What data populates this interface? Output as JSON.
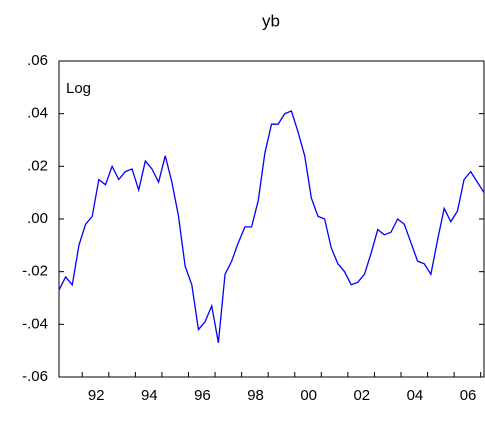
{
  "chart_data": {
    "type": "line",
    "title": "yb",
    "annotation": "Log",
    "categories": [
      null,
      null,
      null,
      null,
      null,
      null,
      "92",
      null,
      null,
      null,
      null,
      null,
      null,
      null,
      "94",
      null,
      null,
      null,
      null,
      null,
      null,
      null,
      "96",
      null,
      null,
      null,
      null,
      null,
      null,
      null,
      "98",
      null,
      null,
      null,
      null,
      null,
      null,
      null,
      "00",
      null,
      null,
      null,
      null,
      null,
      null,
      null,
      "02",
      null,
      null,
      null,
      null,
      null,
      null,
      null,
      "04",
      null,
      null,
      null,
      null,
      null,
      null,
      null,
      "06",
      null,
      null
    ],
    "series": [
      {
        "name": "yb",
        "color": "#0000ff",
        "values": [
          -0.027,
          -0.022,
          -0.025,
          -0.01,
          -0.002,
          0.001,
          0.015,
          0.013,
          0.02,
          0.015,
          0.018,
          0.019,
          0.011,
          0.022,
          0.019,
          0.014,
          0.024,
          0.014,
          0.001,
          -0.018,
          -0.025,
          -0.042,
          -0.039,
          -0.033,
          -0.047,
          -0.021,
          -0.016,
          -0.009,
          -0.003,
          -0.003,
          0.007,
          0.025,
          0.036,
          0.036,
          0.04,
          0.041,
          0.033,
          0.024,
          0.008,
          0.001,
          0.0,
          -0.011,
          -0.017,
          -0.02,
          -0.025,
          -0.024,
          -0.021,
          -0.013,
          -0.004,
          -0.006,
          -0.005,
          0.0,
          -0.002,
          -0.009,
          -0.016,
          -0.017,
          -0.021,
          -0.008,
          0.004,
          -0.001,
          0.003,
          0.015,
          0.018,
          0.014,
          0.01
        ]
      }
    ],
    "ylim": [
      -0.06,
      0.06
    ],
    "yticks": [
      {
        "value": -0.06,
        "label": "-.06"
      },
      {
        "value": -0.04,
        "label": "-.04"
      },
      {
        "value": -0.02,
        "label": "-.02"
      },
      {
        "value": 0,
        "label": ".00"
      },
      {
        "value": 0.02,
        "label": ".02"
      },
      {
        "value": 0.04,
        "label": ".04"
      },
      {
        "value": 0.06,
        "label": ".06"
      }
    ]
  }
}
